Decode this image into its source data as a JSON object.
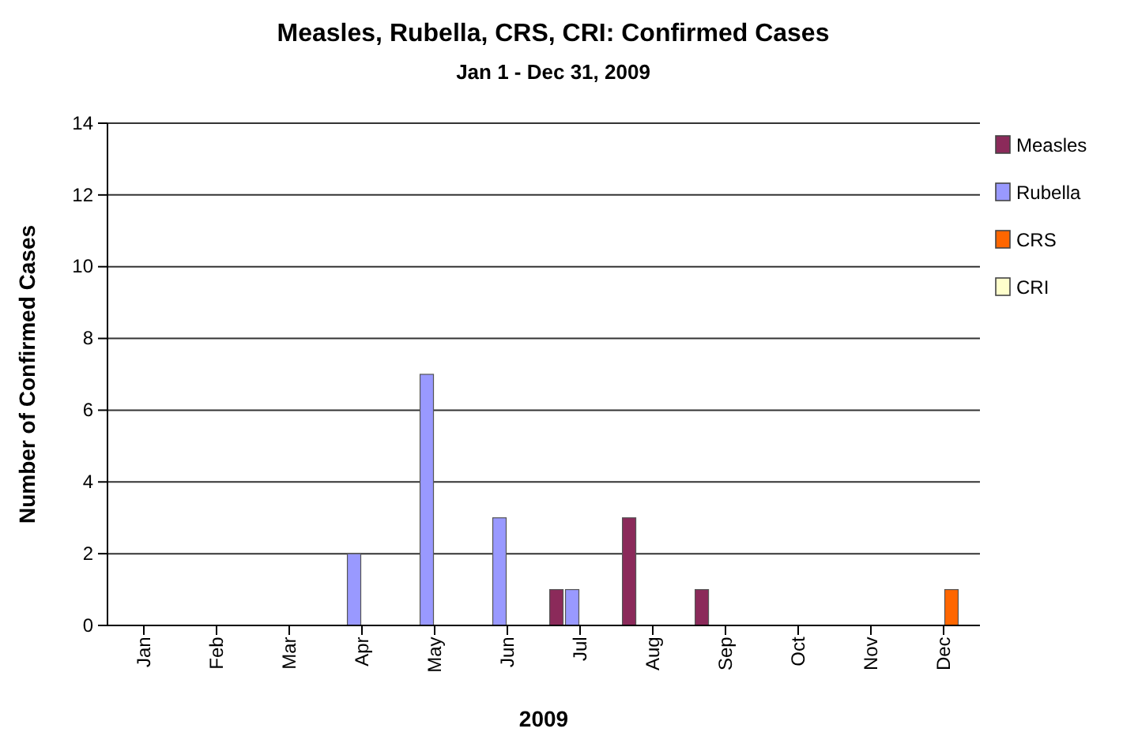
{
  "chart_data": {
    "type": "bar",
    "title": "Measles, Rubella, CRS, CRI: Confirmed Cases",
    "subtitle": "Jan 1 - Dec 31, 2009",
    "xlabel": "2009",
    "ylabel": "Number of Confirmed Cases",
    "categories": [
      "Jan",
      "Feb",
      "Mar",
      "Apr",
      "May",
      "Jun",
      "Jul",
      "Aug",
      "Sep",
      "Oct",
      "Nov",
      "Dec"
    ],
    "series": [
      {
        "name": "Measles",
        "color": "#8b2a5a",
        "values": [
          0,
          0,
          0,
          0,
          0,
          0,
          1,
          3,
          1,
          0,
          0,
          0
        ]
      },
      {
        "name": "Rubella",
        "color": "#9999ff",
        "values": [
          0,
          0,
          0,
          2,
          7,
          3,
          1,
          0,
          0,
          0,
          0,
          0
        ]
      },
      {
        "name": "CRS",
        "color": "#ff6600",
        "values": [
          0,
          0,
          0,
          0,
          0,
          0,
          0,
          0,
          0,
          0,
          0,
          1
        ]
      },
      {
        "name": "CRI",
        "color": "#ffffcc",
        "values": [
          0,
          0,
          0,
          0,
          0,
          0,
          0,
          0,
          0,
          0,
          0,
          0
        ]
      }
    ],
    "ylim": [
      0,
      14
    ],
    "yticks": [
      0,
      2,
      4,
      6,
      8,
      10,
      12,
      14
    ],
    "grid": "y",
    "legend": "right"
  }
}
